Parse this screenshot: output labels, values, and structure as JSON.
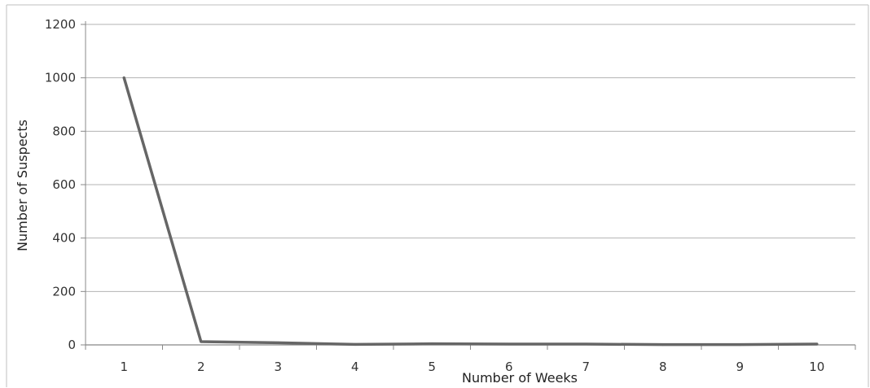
{
  "chart_data": {
    "type": "line",
    "title": "",
    "xlabel": "Number of Weeks",
    "ylabel": "Number of Suspects",
    "categories": [
      "1",
      "2",
      "3",
      "4",
      "5",
      "6",
      "7",
      "8",
      "9",
      "10"
    ],
    "series": [
      {
        "values": [
          1000,
          12,
          8,
          2,
          4,
          3,
          3,
          1,
          1,
          3
        ],
        "color": "#666666"
      }
    ],
    "ylim": [
      0,
      1200
    ],
    "yticks": [
      "0",
      "200",
      "400",
      "600",
      "800",
      "1000",
      "1200"
    ],
    "grid": "horizontal",
    "legend": "none"
  }
}
